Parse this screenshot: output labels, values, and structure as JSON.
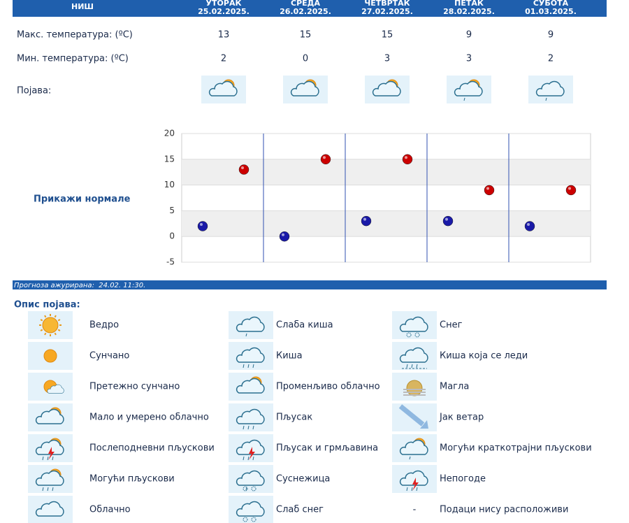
{
  "header": {
    "city": "НИШ",
    "days": [
      {
        "name": "УТОРАК",
        "date": "25.02.2025."
      },
      {
        "name": "СРЕДА",
        "date": "26.02.2025."
      },
      {
        "name": "ЧЕТВРТАК",
        "date": "27.02.2025."
      },
      {
        "name": "ПЕТАК",
        "date": "28.02.2025."
      },
      {
        "name": "СУБОТА",
        "date": "01.03.2025."
      }
    ]
  },
  "rows": {
    "max": {
      "label": "Макс. температура: (ºC)",
      "values": [
        13,
        15,
        15,
        9,
        9
      ]
    },
    "min": {
      "label": "Мин. температура: (ºC)",
      "values": [
        2,
        0,
        3,
        3,
        2
      ]
    },
    "phenomenon": {
      "label": "Појава:"
    }
  },
  "chart": {
    "ylim": [
      -5,
      20
    ],
    "yticks": [
      -5,
      0,
      5,
      10,
      15,
      20
    ],
    "max_color": "#cc0000",
    "min_color": "#1a1aa8"
  },
  "link": "Прикажи нормале",
  "updated": "Прогноза ажурирана:  24.02. 11:30.",
  "legend": {
    "title": "Опис појава:",
    "items": [
      "Ведро",
      "Сунчано",
      "Претежно сунчано",
      "Мало и умерено облачно",
      "Послеподневни пљускови",
      "Могући пљускови",
      "Облачно",
      "Слаба киша",
      "Киша",
      "Променљиво облачно",
      "Пљусак",
      "Пљусак и грмљавина",
      "Суснежица",
      "Слаб снег",
      "Снег",
      "Киша која се леди",
      "Магла",
      "Јак ветар",
      "Могући краткотрајни пљускови",
      "Непогоде",
      "Подаци нису расположиви"
    ],
    "no_data_symbol": "-"
  }
}
